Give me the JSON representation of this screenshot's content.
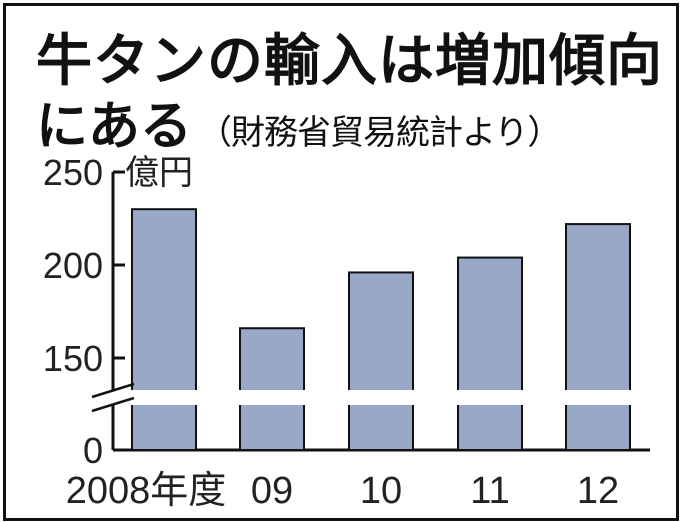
{
  "title_line1": "牛タンの輸入は増加傾向",
  "title_line2": "にある",
  "subtitle": "（財務省貿易統計より）",
  "chart_data": {
    "type": "bar",
    "unit": "億円",
    "categories": [
      "2008年度",
      "09",
      "10",
      "11",
      "12"
    ],
    "values": [
      230,
      166,
      196,
      204,
      222
    ],
    "ylim": [
      0,
      250
    ],
    "yticks": [
      250,
      200,
      150,
      0
    ],
    "axis_break": "between 0 and 150",
    "grid": false,
    "bar_color": "#9aa8c8",
    "edge_color": "#111111"
  }
}
